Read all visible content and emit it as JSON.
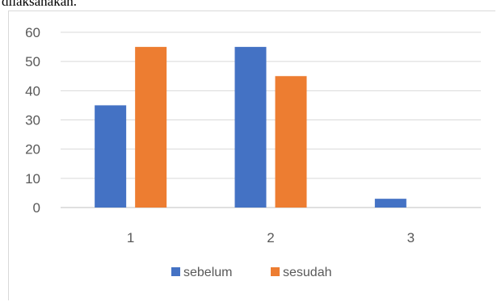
{
  "caption_fragment": "dilaksanakan.",
  "chart_data": {
    "type": "bar",
    "categories": [
      "1",
      "2",
      "3"
    ],
    "series": [
      {
        "name": "sebelum",
        "values": [
          35,
          55,
          3
        ],
        "color": "#4472C4"
      },
      {
        "name": "sesudah",
        "values": [
          55,
          45,
          0
        ],
        "color": "#ED7D31"
      }
    ],
    "ylim": [
      0,
      60
    ],
    "yticks": [
      "0",
      "10",
      "20",
      "30",
      "40",
      "50",
      "60"
    ],
    "grid": true,
    "legend_position": "bottom",
    "title": "",
    "xlabel": "",
    "ylabel": ""
  }
}
